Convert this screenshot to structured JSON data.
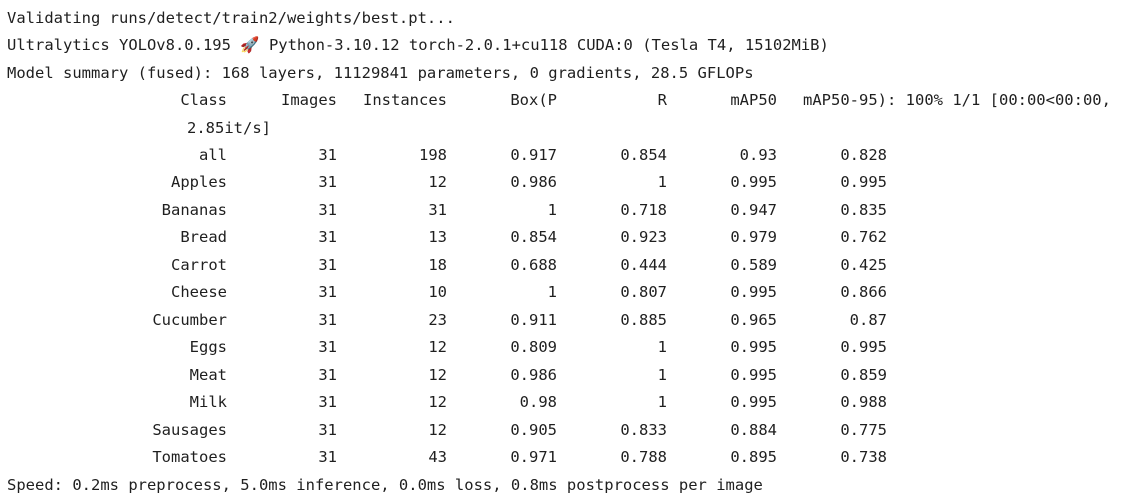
{
  "log": {
    "validating": "Validating runs/detect/train2/weights/best.pt...",
    "env_prefix": "Ultralytics YOLOv8.0.195 ",
    "rocket_icon": "rocket-icon",
    "rocket_glyph": "🚀",
    "env_suffix": " Python-3.10.12 torch-2.0.1+cu118 CUDA:0 (Tesla T4, 15102MiB)",
    "model_summary": "Model summary (fused): 168 layers, 11129841 parameters, 0 gradients, 28.5 GFLOPs",
    "progress_tail": ": 100% 1/1 [00:00<00:00,",
    "progress_rate": "2.85it/s]",
    "speed": "Speed: 0.2ms preprocess, 5.0ms inference, 0.0ms loss, 0.8ms postprocess per image"
  },
  "table": {
    "headers": [
      "Class",
      "Images",
      "Instances",
      "Box(P",
      "R",
      "mAP50",
      "mAP50-95)"
    ],
    "rows": [
      [
        "all",
        "31",
        "198",
        "0.917",
        "0.854",
        "0.93",
        "0.828"
      ],
      [
        "Apples",
        "31",
        "12",
        "0.986",
        "1",
        "0.995",
        "0.995"
      ],
      [
        "Bananas",
        "31",
        "31",
        "1",
        "0.718",
        "0.947",
        "0.835"
      ],
      [
        "Bread",
        "31",
        "13",
        "0.854",
        "0.923",
        "0.979",
        "0.762"
      ],
      [
        "Carrot",
        "31",
        "18",
        "0.688",
        "0.444",
        "0.589",
        "0.425"
      ],
      [
        "Cheese",
        "31",
        "10",
        "1",
        "0.807",
        "0.995",
        "0.866"
      ],
      [
        "Cucumber",
        "31",
        "23",
        "0.911",
        "0.885",
        "0.965",
        "0.87"
      ],
      [
        "Eggs",
        "31",
        "12",
        "0.809",
        "1",
        "0.995",
        "0.995"
      ],
      [
        "Meat",
        "31",
        "12",
        "0.986",
        "1",
        "0.995",
        "0.859"
      ],
      [
        "Milk",
        "31",
        "12",
        "0.98",
        "1",
        "0.995",
        "0.988"
      ],
      [
        "Sausages",
        "31",
        "12",
        "0.905",
        "0.833",
        "0.884",
        "0.775"
      ],
      [
        "Tomatoes",
        "31",
        "43",
        "0.971",
        "0.788",
        "0.895",
        "0.738"
      ]
    ]
  }
}
